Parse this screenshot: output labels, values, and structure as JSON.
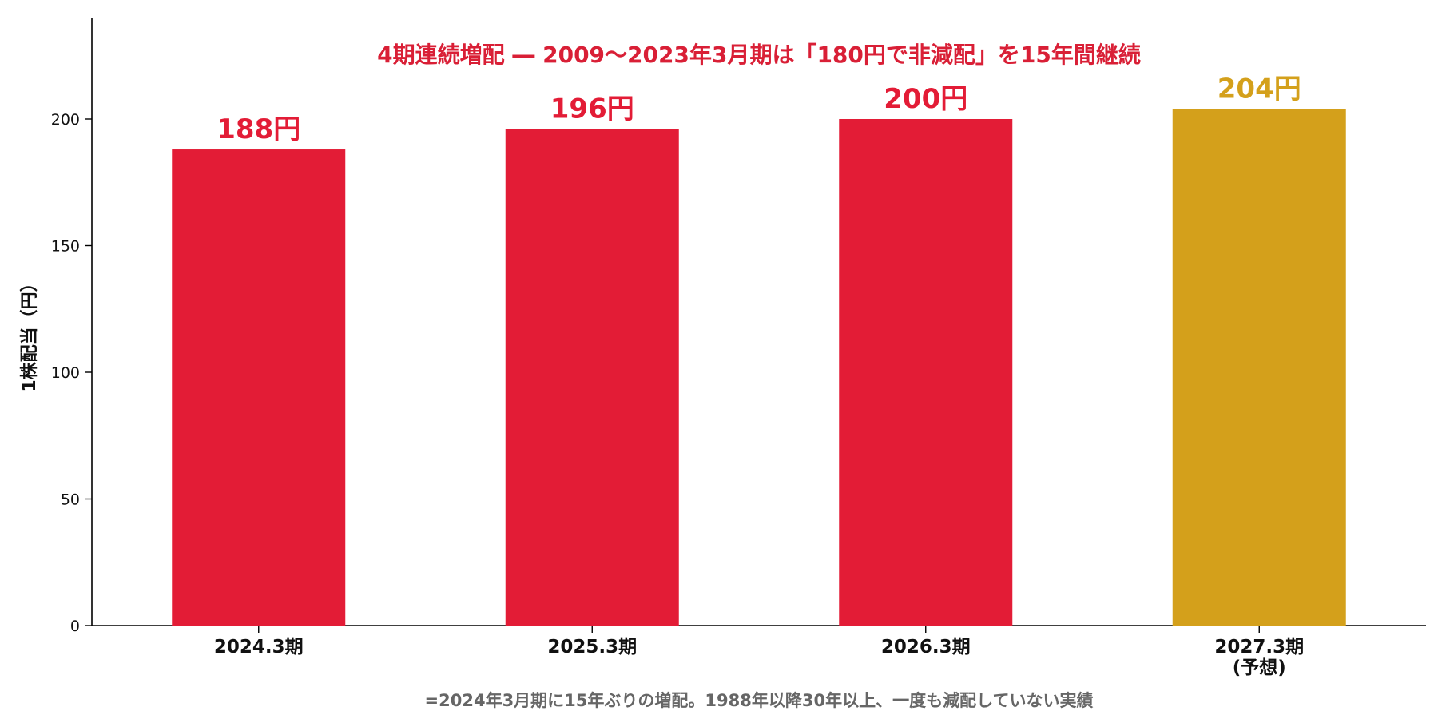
{
  "chart_data": {
    "type": "bar",
    "categories": [
      [
        "2024.3期"
      ],
      [
        "2025.3期"
      ],
      [
        "2026.3期"
      ],
      [
        "2027.3期",
        "(予想)"
      ]
    ],
    "values": [
      188,
      196,
      200,
      204
    ],
    "data_labels": [
      "188円",
      "196円",
      "200円",
      "204円"
    ],
    "bar_colors": [
      "#e31c36",
      "#e31c36",
      "#e31c36",
      "#d4a01b"
    ],
    "ylabel": "1株配当（円）",
    "ylim": [
      0,
      240
    ],
    "yticks": [
      0,
      50,
      100,
      150,
      200
    ],
    "grid": false,
    "annotation": "4期連続増配 ― 2009〜2023年3月期は「180円で非減配」を15年間継続",
    "annotation_color": "#d91f36",
    "footnote": "=2024年3月期に15年ぶりの増配。1988年以降30年以上、一度も減配していない実績",
    "footnote_color": "#666666"
  }
}
